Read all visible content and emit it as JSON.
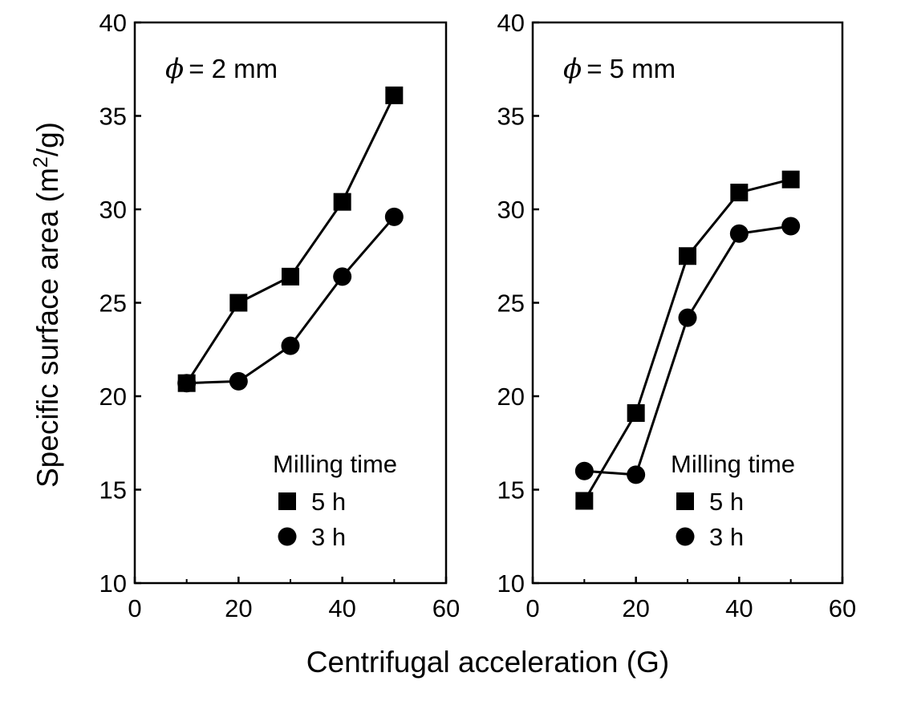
{
  "figure": {
    "shared_xlabel": "Centrifugal acceleration (G)"
  },
  "chart_data": [
    {
      "type": "line",
      "panel_label": {
        "symbol": "ϕ",
        "text": "= 2 mm"
      },
      "xlabel": "",
      "ylabel": "Specific surface area (m²/g)",
      "ylabel_parts": {
        "before": "Specific surface area (m",
        "sup": "2",
        "after": "/g)"
      },
      "xlim": [
        0,
        60
      ],
      "ylim": [
        10,
        40
      ],
      "xticks": [
        0,
        20,
        40,
        60
      ],
      "yticks": [
        10,
        15,
        20,
        25,
        30,
        35,
        40
      ],
      "grid": false,
      "legend": {
        "title": "Milling time",
        "placement": "bottom-right"
      },
      "x": [
        10,
        20,
        30,
        40,
        50
      ],
      "series": [
        {
          "name": "5 h",
          "marker": "square",
          "values": [
            20.7,
            25.0,
            26.4,
            30.4,
            36.1
          ]
        },
        {
          "name": "3 h",
          "marker": "circle",
          "values": [
            20.7,
            20.8,
            22.7,
            26.4,
            29.6
          ]
        }
      ]
    },
    {
      "type": "line",
      "panel_label": {
        "symbol": "ϕ",
        "text": "= 5 mm"
      },
      "xlabel": "",
      "ylabel": "",
      "xlim": [
        0,
        60
      ],
      "ylim": [
        10,
        40
      ],
      "xticks": [
        0,
        20,
        40,
        60
      ],
      "yticks": [
        10,
        15,
        20,
        25,
        30,
        35,
        40
      ],
      "grid": false,
      "legend": {
        "title": "Milling time",
        "placement": "bottom-right"
      },
      "x": [
        10,
        20,
        30,
        40,
        50
      ],
      "series": [
        {
          "name": "5 h",
          "marker": "square",
          "values": [
            14.4,
            19.1,
            27.5,
            30.9,
            31.6
          ]
        },
        {
          "name": "3 h",
          "marker": "circle",
          "values": [
            16.0,
            15.8,
            24.2,
            28.7,
            29.1
          ]
        }
      ]
    }
  ]
}
